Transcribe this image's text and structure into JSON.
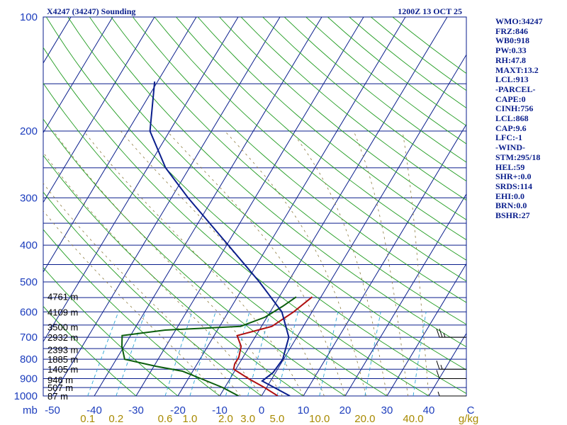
{
  "header": {
    "station": "X4247 (34247) Sounding",
    "time": "1200Z 13 OCT 25"
  },
  "chart_data": {
    "type": "skew-t log-p sounding",
    "pressure_levels_hpa": [
      {
        "value": 100,
        "label": "100"
      },
      {
        "value": 200,
        "label": "200"
      },
      {
        "value": 300,
        "label": "300"
      },
      {
        "value": 400,
        "label": "400"
      },
      {
        "value": 500,
        "label": "500"
      },
      {
        "value": 600,
        "label": "600"
      },
      {
        "value": 700,
        "label": "700"
      },
      {
        "value": 800,
        "label": "800"
      },
      {
        "value": 900,
        "label": "900"
      },
      {
        "value": 1000,
        "label": "1000"
      }
    ],
    "isobars_hpa": [
      150,
      200,
      250,
      300,
      350,
      400,
      450,
      500,
      550,
      600,
      650,
      700,
      750,
      800,
      850,
      900,
      950,
      1000
    ],
    "temperature_ticks_c": [
      {
        "value": -50,
        "label": "-50"
      },
      {
        "value": -40,
        "label": "-40"
      },
      {
        "value": -30,
        "label": "-30"
      },
      {
        "value": -20,
        "label": "-20"
      },
      {
        "value": -10,
        "label": "-10"
      },
      {
        "value": 0,
        "label": "0"
      },
      {
        "value": 10,
        "label": "10"
      },
      {
        "value": 20,
        "label": "20"
      },
      {
        "value": 30,
        "label": "30"
      },
      {
        "value": 40,
        "label": "40"
      },
      {
        "value": 50,
        "label": "C"
      }
    ],
    "pressure_unit_label": "mb",
    "mixing_ratio_labels": [
      {
        "value": 0.1,
        "label": "0.1"
      },
      {
        "value": 0.2,
        "label": "0.2"
      },
      {
        "value": 0.6,
        "label": "0.6"
      },
      {
        "value": 1.0,
        "label": "1.0"
      },
      {
        "value": 2.0,
        "label": "2.0"
      },
      {
        "value": 3.0,
        "label": "3.0"
      },
      {
        "value": 5.0,
        "label": "5.0"
      },
      {
        "value": 10.0,
        "label": "10.0"
      },
      {
        "value": 20.0,
        "label": "20.0"
      },
      {
        "value": 40.0,
        "label": "40.0"
      }
    ],
    "mixing_ratio_unit": "g/kg",
    "height_labels": [
      {
        "p": 546,
        "label": "4761 m"
      },
      {
        "p": 600,
        "label": "4109 m"
      },
      {
        "p": 657,
        "label": "3500 m"
      },
      {
        "p": 700,
        "label": "2932 m"
      },
      {
        "p": 754,
        "label": "2393 m"
      },
      {
        "p": 800,
        "label": "1885 m"
      },
      {
        "p": 850,
        "label": "1405 m"
      },
      {
        "p": 905,
        "label": "946 m"
      },
      {
        "p": 950,
        "label": "507 m"
      },
      {
        "p": 1000,
        "label": "87 m"
      }
    ],
    "series": [
      {
        "name": "temperature",
        "color": "#b01010",
        "points": [
          [
            548,
            -2.1
          ],
          [
            600,
            -4.4
          ],
          [
            655,
            -7.5
          ],
          [
            693,
            -14.5
          ],
          [
            740,
            -12.0
          ],
          [
            790,
            -11.0
          ],
          [
            824,
            -11.0
          ],
          [
            850,
            -10.5
          ],
          [
            900,
            -5.6
          ],
          [
            950,
            -0.5
          ],
          [
            1000,
            3.9
          ]
        ]
      },
      {
        "name": "dewpoint",
        "color": "#0b5e0b",
        "points": [
          [
            548,
            -5.9
          ],
          [
            580,
            -7.8
          ],
          [
            620,
            -10.5
          ],
          [
            655,
            -15.0
          ],
          [
            670,
            -32.5
          ],
          [
            693,
            -42.0
          ],
          [
            740,
            -40.5
          ],
          [
            800,
            -38.0
          ],
          [
            835,
            -29.5
          ],
          [
            860,
            -22.5
          ],
          [
            900,
            -17.0
          ],
          [
            950,
            -10.5
          ],
          [
            1000,
            -5.5
          ]
        ]
      },
      {
        "name": "parcel",
        "color": "#0a1e8c",
        "points": [
          [
            148,
            -70.7
          ],
          [
            200,
            -64.7
          ],
          [
            250,
            -55.7
          ],
          [
            300,
            -46.0
          ],
          [
            400,
            -29.6
          ],
          [
            500,
            -16.9
          ],
          [
            600,
            -7.2
          ],
          [
            700,
            -1.9
          ],
          [
            800,
            -0.2
          ],
          [
            868,
            -0.6
          ],
          [
            913,
            -2.0
          ],
          [
            1000,
            6.8
          ]
        ]
      }
    ],
    "wind_barbs": [
      {
        "p": 700,
        "direction": "W",
        "speed_kt": 25
      },
      {
        "p": 850,
        "direction": "W",
        "speed_kt": 15
      },
      {
        "p": 900,
        "direction": "W",
        "speed_kt": 10
      },
      {
        "p": 1000,
        "direction": "W",
        "speed_kt": 5
      }
    ]
  },
  "stats": [
    "WMO:34247",
    "FRZ:846",
    "WB0:918",
    "PW:0.33",
    "RH:47.8",
    "MAXT:13.2",
    "LCL:913",
    "-PARCEL-",
    "CAPE:0",
    "CINH:756",
    "LCL:868",
    "CAP:9.6",
    "LFC:-1",
    "-WIND-",
    "STM:295/18",
    "HEL:59",
    "SHR+:0.0",
    "SRDS:114",
    "EHI:0.0",
    "BRN:0.0",
    "BSHR:27"
  ]
}
